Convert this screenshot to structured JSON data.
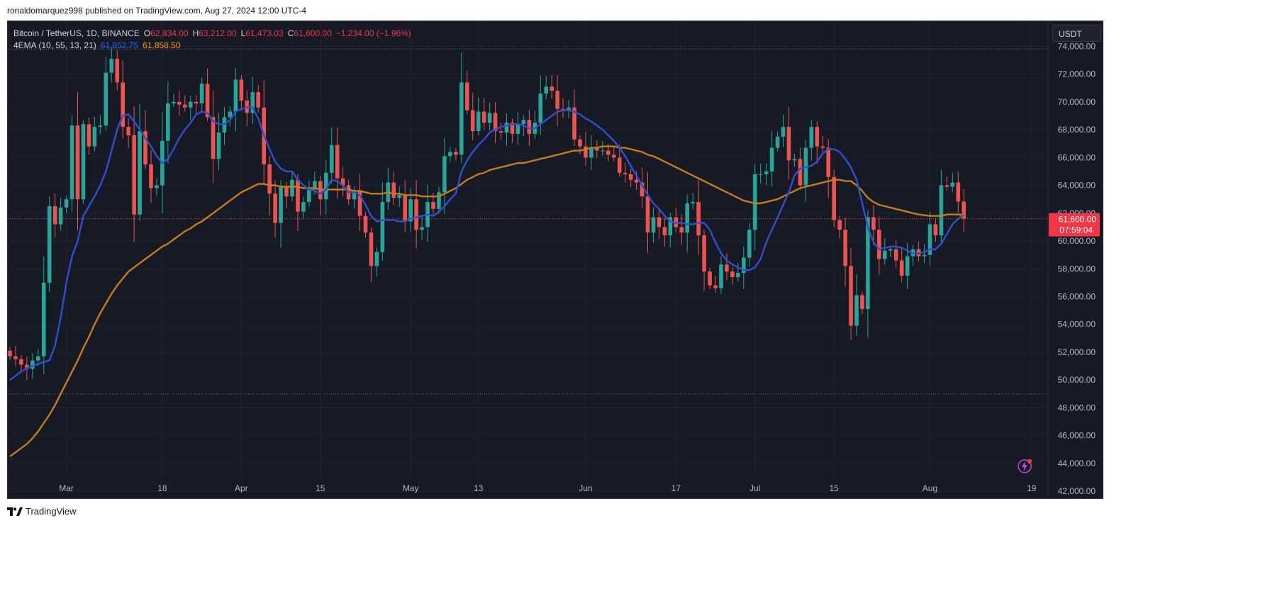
{
  "header": {
    "publisher_line": "ronaldomarquez998 published on TradingView.com, Aug 27, 2024 12:00 UTC-4"
  },
  "legend": {
    "symbol": "Bitcoin / TetherUS, 1D, BINANCE",
    "open_label": "O",
    "open": "62,834.00",
    "high_label": "H",
    "high": "63,212.00",
    "low_label": "L",
    "low": "61,473.03",
    "close_label": "C",
    "close": "61,600.00",
    "change": "−1,234.00 (−1.96%)",
    "indicator": "4EMA (10, 55, 13, 21)",
    "ema_fast": "61,852.75",
    "ema_slow": "61,858.50"
  },
  "currency_button": "USDT",
  "price_tag": {
    "price": "61,600.00",
    "countdown": "07:59:04"
  },
  "footer": {
    "brand": "TradingView"
  },
  "colors": {
    "up": "#26a69a",
    "down": "#ef5350",
    "ema_fast": "#2f4fcf",
    "ema_slow": "#c67c1a",
    "background": "#161a25"
  },
  "chart_data": {
    "type": "candlestick",
    "symbol": "BTCUSDT",
    "timeframe": "1D",
    "ylim": [
      41500,
      75800
    ],
    "y_ticks": [
      42000,
      44000,
      46000,
      48000,
      50000,
      52000,
      54000,
      56000,
      58000,
      60000,
      62000,
      64000,
      66000,
      68000,
      70000,
      72000,
      74000
    ],
    "x_ticks": [
      {
        "label": "Mar",
        "date": "2024-03-01"
      },
      {
        "label": "18",
        "date": "2024-03-18"
      },
      {
        "label": "Apr",
        "date": "2024-04-01"
      },
      {
        "label": "15",
        "date": "2024-04-15"
      },
      {
        "label": "May",
        "date": "2024-05-01"
      },
      {
        "label": "13",
        "date": "2024-05-13"
      },
      {
        "label": "Jun",
        "date": "2024-06-01"
      },
      {
        "label": "17",
        "date": "2024-06-17"
      },
      {
        "label": "Jul",
        "date": "2024-07-01"
      },
      {
        "label": "15",
        "date": "2024-07-15"
      },
      {
        "label": "Aug",
        "date": "2024-08-01"
      },
      {
        "label": "19",
        "date": "2024-08-19"
      }
    ],
    "reference_lines": [
      73800,
      49000
    ],
    "current_price": 61600,
    "first_date": "2024-02-20",
    "closes": [
      51700,
      51500,
      51100,
      50800,
      51400,
      51700,
      57000,
      62500,
      61200,
      62400,
      63000,
      68300,
      63000,
      68400,
      66800,
      68200,
      68300,
      72100,
      73100,
      71400,
      68200,
      67600,
      61900,
      67900,
      65500,
      63800,
      64000,
      67200,
      69900,
      70000,
      69800,
      69600,
      70000,
      69900,
      71300,
      68900,
      65900,
      67800,
      68900,
      69300,
      71600,
      70100,
      69200,
      70700,
      69600,
      65500,
      63400,
      61300,
      63900,
      63200,
      64400,
      62100,
      62800,
      63700,
      64300,
      63000,
      64900,
      66900,
      64500,
      64000,
      63000,
      63600,
      61800,
      60600,
      58200,
      59200,
      62800,
      64200,
      63100,
      63300,
      61400,
      63000,
      60800,
      61000,
      62800,
      62300,
      63500,
      66100,
      66400,
      66200,
      71400,
      69400,
      67900,
      69300,
      68500,
      69200,
      67900,
      67800,
      68500,
      67700,
      68400,
      68700,
      67700,
      68500,
      70600,
      71100,
      70800,
      69500,
      69400,
      69600,
      67300,
      66800,
      66000,
      66700,
      66500,
      66500,
      66200,
      66000,
      64900,
      64800,
      64400,
      64200,
      63200,
      60600,
      61700,
      61000,
      60400,
      61700,
      61000,
      60600,
      62700,
      62800,
      60400,
      57800,
      56800,
      56600,
      58300,
      57800,
      57400,
      57700,
      58800,
      60800,
      64800,
      64800,
      65000,
      66700,
      67500,
      68200,
      65800,
      65900,
      64000,
      66700,
      68200,
      66800,
      66700,
      64600,
      61500,
      60800,
      58200,
      53900,
      56100,
      55100,
      61700,
      60800,
      58700,
      59300,
      59400,
      58600,
      57500,
      58900,
      59400,
      58900,
      59000,
      61200,
      60400,
      64000,
      63900,
      64200,
      62834,
      61600
    ],
    "ema_fast": [
      50000,
      50300,
      50600,
      50850,
      51000,
      51150,
      51300,
      51400,
      52500,
      54500,
      57000,
      58900,
      60000,
      61800,
      62500,
      63200,
      64000,
      65000,
      66500,
      68000,
      69000,
      69100,
      68600,
      68000,
      67400,
      66800,
      66100,
      65600,
      65900,
      66600,
      67400,
      68000,
      68500,
      69100,
      69300,
      69200,
      68600,
      68400,
      68400,
      68700,
      69300,
      69500,
      69600,
      69600,
      68800,
      67600,
      66600,
      65700,
      65200,
      65000,
      65000,
      64400,
      64000,
      63700,
      63600,
      63400,
      63700,
      64400,
      64300,
      64000,
      63500,
      63500,
      63300,
      62600,
      61800,
      61400,
      61500,
      61500,
      61500,
      61400,
      61400,
      61600,
      61700,
      61800,
      61900,
      61800,
      62100,
      62500,
      63000,
      63400,
      65000,
      65800,
      66400,
      66900,
      67300,
      67800,
      68000,
      68200,
      68300,
      68400,
      68400,
      68300,
      68100,
      68100,
      68400,
      68700,
      69000,
      69300,
      69400,
      69400,
      69300,
      69100,
      68800,
      68600,
      68300,
      68000,
      67600,
      67200,
      66700,
      66100,
      65400,
      64700,
      64000,
      63300,
      62700,
      62300,
      61800,
      61400,
      61300,
      61300,
      61200,
      61200,
      61300,
      61300,
      60800,
      59900,
      59100,
      58600,
      58300,
      58100,
      57900,
      57900,
      58100,
      58700,
      59900,
      60800,
      61700,
      62600,
      63500,
      64700,
      65200,
      65300,
      65400,
      65700,
      66300,
      66600,
      66600,
      66400,
      65900,
      65300,
      64400,
      62700,
      61000,
      59900,
      59400,
      59500,
      59600,
      59600,
      59500,
      59300,
      59100,
      59100,
      59200,
      59400,
      59400,
      59800,
      60500,
      61200,
      61600,
      61852.75
    ],
    "ema_slow": [
      44500,
      44800,
      45100,
      45400,
      45800,
      46300,
      46900,
      47500,
      48200,
      49000,
      49800,
      50600,
      51400,
      52300,
      53100,
      54000,
      54800,
      55500,
      56200,
      56800,
      57300,
      57800,
      58100,
      58400,
      58700,
      59000,
      59300,
      59600,
      59800,
      60100,
      60400,
      60700,
      60900,
      61200,
      61400,
      61700,
      62000,
      62300,
      62600,
      62900,
      63200,
      63500,
      63700,
      63900,
      64100,
      64100,
      64000,
      64000,
      63900,
      63900,
      63900,
      63900,
      63800,
      63800,
      63800,
      63700,
      63700,
      63700,
      63700,
      63700,
      63700,
      63600,
      63600,
      63500,
      63400,
      63400,
      63400,
      63500,
      63400,
      63400,
      63300,
      63300,
      63300,
      63200,
      63200,
      63200,
      63200,
      63400,
      63600,
      63800,
      64100,
      64400,
      64600,
      64800,
      64900,
      65100,
      65200,
      65300,
      65400,
      65500,
      65600,
      65600,
      65700,
      65800,
      65900,
      66000,
      66100,
      66200,
      66300,
      66400,
      66500,
      66500,
      66600,
      66700,
      66700,
      66800,
      66800,
      66800,
      66700,
      66700,
      66600,
      66500,
      66400,
      66200,
      66100,
      65900,
      65700,
      65500,
      65300,
      65100,
      64900,
      64700,
      64500,
      64300,
      64100,
      63900,
      63700,
      63500,
      63300,
      63100,
      62900,
      62800,
      62700,
      62700,
      62800,
      62900,
      63000,
      63200,
      63400,
      63600,
      63800,
      63900,
      64000,
      64100,
      64200,
      64300,
      64400,
      64400,
      64300,
      64300,
      64000,
      63600,
      63100,
      62800,
      62600,
      62500,
      62400,
      62300,
      62200,
      62100,
      62000,
      61900,
      61850,
      61800,
      61800,
      61800,
      61900,
      61900,
      61900,
      61858.5
    ]
  }
}
